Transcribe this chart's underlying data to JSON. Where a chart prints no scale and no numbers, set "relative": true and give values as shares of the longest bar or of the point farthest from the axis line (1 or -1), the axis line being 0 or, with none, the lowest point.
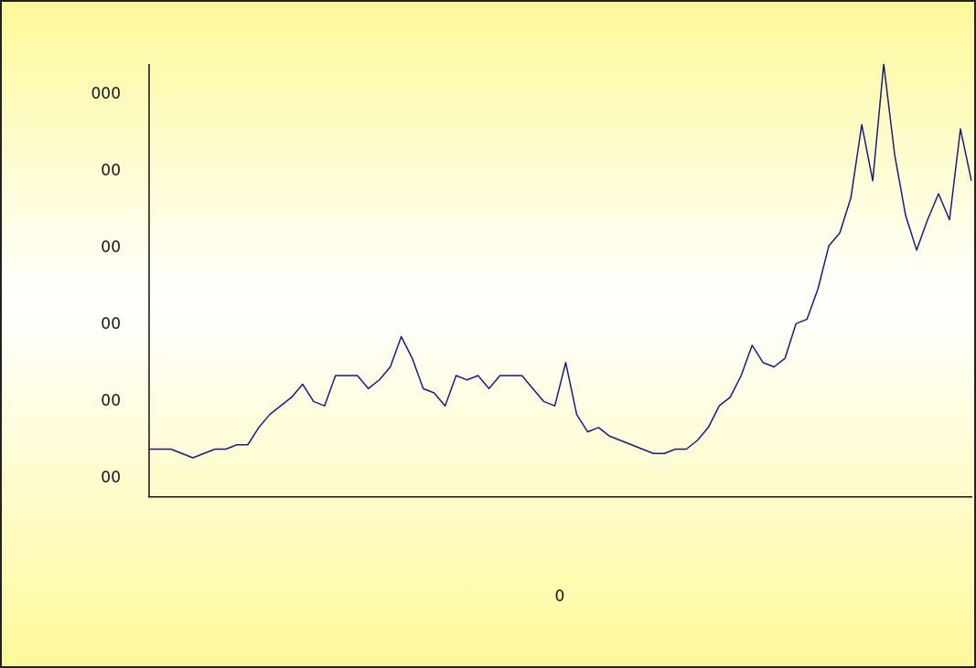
{
  "chart_data": {
    "type": "line",
    "relative": true,
    "categories": [
      null,
      null,
      null,
      null,
      null,
      null,
      null,
      null,
      null,
      null,
      null,
      null,
      null,
      null,
      null,
      null,
      null,
      null,
      null,
      null,
      null,
      null,
      null,
      null,
      null,
      null,
      null,
      null,
      null,
      null,
      null,
      null,
      null,
      null,
      null,
      null,
      null,
      null,
      null,
      null,
      null,
      null,
      null,
      null,
      null,
      null,
      null,
      null,
      null,
      null,
      null,
      null,
      null,
      null,
      null,
      null,
      null,
      null,
      null,
      null,
      null,
      null,
      null,
      null,
      null,
      null,
      null,
      null,
      null,
      null,
      null,
      null,
      null,
      null,
      null,
      null
    ],
    "series": [
      {
        "color": "#1a1a80",
        "values": [
          0.11,
          0.11,
          0.11,
          0.1,
          0.09,
          0.1,
          0.11,
          0.11,
          0.12,
          0.12,
          0.16,
          0.19,
          0.21,
          0.23,
          0.26,
          0.22,
          0.21,
          0.28,
          0.28,
          0.28,
          0.25,
          0.27,
          0.3,
          0.37,
          0.32,
          0.25,
          0.24,
          0.21,
          0.28,
          0.27,
          0.28,
          0.25,
          0.28,
          0.28,
          0.28,
          0.25,
          0.22,
          0.21,
          0.31,
          0.19,
          0.15,
          0.16,
          0.14,
          0.13,
          0.12,
          0.11,
          0.1,
          0.1,
          0.11,
          0.11,
          0.13,
          0.16,
          0.21,
          0.23,
          0.28,
          0.35,
          0.31,
          0.3,
          0.32,
          0.4,
          0.41,
          0.48,
          0.58,
          0.61,
          0.69,
          0.86,
          0.73,
          1,
          0.79,
          0.65,
          0.57,
          0.64,
          0.7,
          0.64,
          0.85,
          0.73
        ]
      }
    ],
    "annotations": [
      "000",
      "00",
      "00",
      "00",
      "00",
      "00",
      "0"
    ],
    "legend": false,
    "grid": false,
    "marker": "none"
  }
}
